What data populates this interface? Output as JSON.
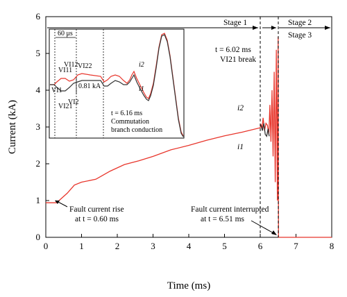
{
  "chart_data": {
    "type": "line",
    "xlabel": "Time (ms)",
    "ylabel": "Current (kA)",
    "xlim": [
      0,
      8
    ],
    "ylim": [
      0,
      6
    ],
    "xticks": [
      "0",
      "1",
      "2",
      "3",
      "4",
      "5",
      "6",
      "7",
      "8"
    ],
    "yticks": [
      "0",
      "1",
      "2",
      "3",
      "4",
      "5",
      "6"
    ],
    "series": [
      {
        "name": "i2",
        "color": "#e8352b",
        "points": [
          [
            0,
            0.94
          ],
          [
            0.3,
            0.94
          ],
          [
            0.6,
            1.2
          ],
          [
            0.8,
            1.42
          ],
          [
            1.0,
            1.5
          ],
          [
            1.4,
            1.58
          ],
          [
            1.8,
            1.8
          ],
          [
            2.2,
            1.98
          ],
          [
            2.6,
            2.08
          ],
          [
            3.0,
            2.2
          ],
          [
            3.5,
            2.38
          ],
          [
            4.0,
            2.5
          ],
          [
            4.5,
            2.64
          ],
          [
            5.0,
            2.76
          ],
          [
            5.5,
            2.86
          ],
          [
            6.0,
            2.98
          ],
          [
            6.02,
            3.08
          ],
          [
            6.05,
            2.95
          ],
          [
            6.08,
            3.25
          ],
          [
            6.12,
            2.9
          ],
          [
            6.16,
            3.1
          ],
          [
            6.2,
            3.05
          ],
          [
            6.24,
            2.8
          ],
          [
            6.27,
            3.6
          ],
          [
            6.3,
            2.6
          ],
          [
            6.33,
            4.0
          ],
          [
            6.36,
            2.2
          ],
          [
            6.39,
            4.5
          ],
          [
            6.42,
            1.5
          ],
          [
            6.45,
            5.1
          ],
          [
            6.48,
            1.0
          ],
          [
            6.5,
            5.45
          ],
          [
            6.51,
            0
          ],
          [
            8,
            0
          ]
        ]
      },
      {
        "name": "i1",
        "color": "#333333",
        "points": [
          [
            6.02,
            3.05
          ],
          [
            6.06,
            2.9
          ],
          [
            6.1,
            3.1
          ],
          [
            6.14,
            2.8
          ],
          [
            6.18,
            2.75
          ],
          [
            6.22,
            2.95
          ],
          [
            6.25,
            2.75
          ]
        ]
      }
    ],
    "annotations": {
      "stage1": "Stage 1",
      "stage2": "Stage 2",
      "stage3": "Stage 3",
      "break_time": "t = 6.02 ms",
      "break_label": "VI21 break",
      "i2_label": "i2",
      "i1_label": "i1",
      "rise_line1": "Fault current rise",
      "rise_line2": "at t = 0.60 ms",
      "interrupt_line1": "Fault current interrupted",
      "interrupt_line2": "at t = 6.51 ms"
    },
    "inset": {
      "width_label": "60 μs",
      "delta_label": "0.81 kA",
      "conduction_time": "t = 6.16 ms",
      "conduction_line1": "Commutation",
      "conduction_line2": "branch conduction",
      "labels": [
        "VI11",
        "VI12",
        "VI22",
        "VI21",
        "VI1",
        "VI2"
      ],
      "i2_label": "i2",
      "i1_label": "i1"
    }
  }
}
